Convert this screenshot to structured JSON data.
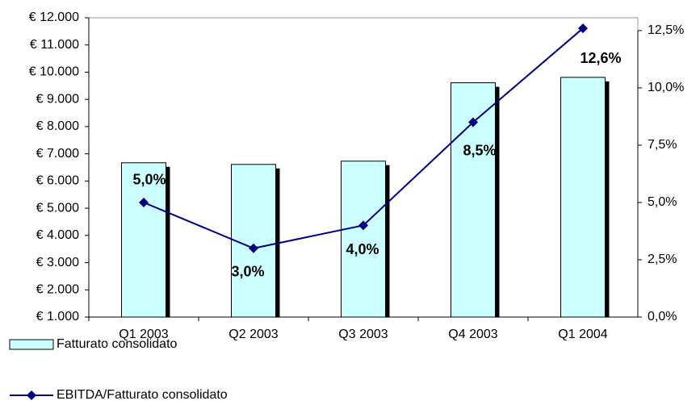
{
  "chart_data": {
    "type": "bar",
    "categories": [
      "Q1 2003",
      "Q2 2003",
      "Q3 2003",
      "Q4 2003",
      "Q1 2004"
    ],
    "series": [
      {
        "name": "Fatturato consolidato",
        "type": "bar",
        "color": "#ccffff",
        "values": [
          6670,
          6610,
          6730,
          9610,
          9810
        ]
      },
      {
        "name": "EBITDA/Fatturato consolidato",
        "type": "line",
        "color": "#000080",
        "axis": "y2",
        "values": [
          5.0,
          3.0,
          4.0,
          8.5,
          12.6
        ],
        "value_labels": [
          "5,0%",
          "3,0%",
          "4,0%",
          "8,5%",
          "12,6%"
        ]
      }
    ],
    "ylim": [
      1000,
      12000
    ],
    "yticks": [
      {
        "value": 1000,
        "label": "€ 1.000"
      },
      {
        "value": 2000,
        "label": "€ 2.000"
      },
      {
        "value": 3000,
        "label": "€ 3.000"
      },
      {
        "value": 4000,
        "label": "€ 4.000"
      },
      {
        "value": 5000,
        "label": "€ 5.000"
      },
      {
        "value": 6000,
        "label": "€ 6.000"
      },
      {
        "value": 7000,
        "label": "€ 7.000"
      },
      {
        "value": 8000,
        "label": "€ 8.000"
      },
      {
        "value": 9000,
        "label": "€ 9.000"
      },
      {
        "value": 10000,
        "label": "€ 10.000"
      },
      {
        "value": 11000,
        "label": "€ 11.000"
      },
      {
        "value": 12000,
        "label": "€ 12.000"
      }
    ],
    "y2lim": [
      0,
      13.06
    ],
    "y2ticks": [
      {
        "value": 0,
        "label": "0,0%"
      },
      {
        "value": 2.5,
        "label": "2,5%"
      },
      {
        "value": 5,
        "label": "5,0%"
      },
      {
        "value": 7.5,
        "label": "7,5%"
      },
      {
        "value": 10,
        "label": "10,0%"
      },
      {
        "value": 12.5,
        "label": "12,5%"
      }
    ],
    "grid": false
  }
}
